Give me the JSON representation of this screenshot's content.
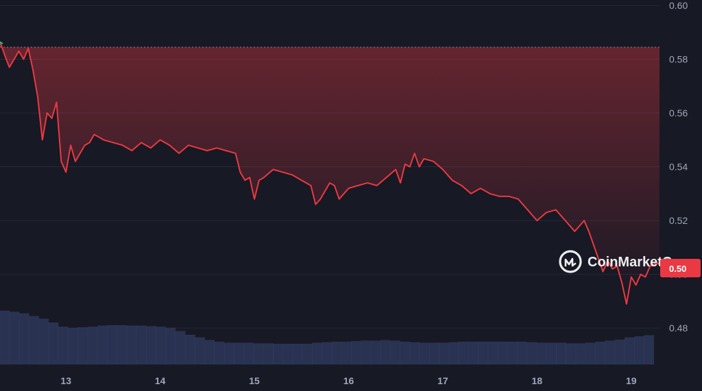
{
  "chart_data": {
    "type": "line",
    "title": "",
    "xlabel": "",
    "ylabel": "",
    "x_tick_labels": [
      "13",
      "14",
      "15",
      "16",
      "17",
      "18",
      "19"
    ],
    "y_tick_labels": [
      "0.60",
      "0.58",
      "0.56",
      "0.54",
      "0.52",
      "0.50",
      "0.48"
    ],
    "ylim": [
      0.465,
      0.6
    ],
    "xlim": [
      12.3,
      19.3
    ],
    "grid": true,
    "reference_price": 0.5845,
    "current_price_label": "0.50",
    "series": [
      {
        "x": [
          12.3,
          12.35,
          12.4,
          12.45,
          12.5,
          12.55,
          12.6,
          12.65,
          12.7,
          12.75,
          12.8,
          12.85,
          12.9,
          12.95,
          13.0,
          13.05,
          13.1,
          13.15,
          13.2,
          13.25,
          13.3,
          13.4,
          13.5,
          13.6,
          13.7,
          13.8,
          13.9,
          14.0,
          14.1,
          14.2,
          14.3,
          14.4,
          14.5,
          14.6,
          14.7,
          14.8,
          14.85,
          14.9,
          14.95,
          15.0,
          15.05,
          15.1,
          15.2,
          15.3,
          15.4,
          15.5,
          15.6,
          15.65,
          15.7,
          15.8,
          15.85,
          15.9,
          16.0,
          16.1,
          16.2,
          16.3,
          16.4,
          16.5,
          16.55,
          16.6,
          16.65,
          16.7,
          16.75,
          16.8,
          16.9,
          17.0,
          17.1,
          17.2,
          17.3,
          17.4,
          17.5,
          17.6,
          17.7,
          17.8,
          17.9,
          18.0,
          18.1,
          18.2,
          18.3,
          18.4,
          18.5,
          18.55,
          18.6,
          18.65,
          18.7,
          18.75,
          18.8,
          18.85,
          18.9,
          18.95,
          19.0,
          19.05,
          19.1,
          19.15,
          19.2,
          19.25,
          19.3
        ],
        "y": [
          0.5865,
          0.5815,
          0.577,
          0.58,
          0.583,
          0.58,
          0.584,
          0.576,
          0.566,
          0.55,
          0.56,
          0.558,
          0.564,
          0.542,
          0.538,
          0.548,
          0.542,
          0.545,
          0.548,
          0.549,
          0.552,
          0.55,
          0.549,
          0.548,
          0.546,
          0.549,
          0.547,
          0.55,
          0.548,
          0.545,
          0.548,
          0.547,
          0.546,
          0.547,
          0.546,
          0.545,
          0.538,
          0.535,
          0.536,
          0.528,
          0.535,
          0.536,
          0.539,
          0.538,
          0.537,
          0.535,
          0.533,
          0.526,
          0.528,
          0.534,
          0.533,
          0.528,
          0.532,
          0.533,
          0.534,
          0.533,
          0.536,
          0.539,
          0.534,
          0.541,
          0.54,
          0.545,
          0.54,
          0.543,
          0.542,
          0.539,
          0.535,
          0.533,
          0.53,
          0.532,
          0.53,
          0.529,
          0.529,
          0.528,
          0.524,
          0.52,
          0.523,
          0.524,
          0.52,
          0.516,
          0.52,
          0.516,
          0.511,
          0.506,
          0.501,
          0.505,
          0.502,
          0.503,
          0.497,
          0.489,
          0.499,
          0.496,
          0.5,
          0.499,
          0.503,
          0.504,
          0.504
        ]
      }
    ],
    "volume_relative": [
      1.0,
      0.98,
      0.95,
      0.9,
      0.85,
      0.78,
      0.7,
      0.68,
      0.69,
      0.7,
      0.72,
      0.73,
      0.73,
      0.72,
      0.72,
      0.71,
      0.7,
      0.68,
      0.62,
      0.55,
      0.5,
      0.45,
      0.42,
      0.4,
      0.4,
      0.4,
      0.39,
      0.39,
      0.38,
      0.38,
      0.38,
      0.38,
      0.4,
      0.41,
      0.42,
      0.42,
      0.43,
      0.44,
      0.44,
      0.45,
      0.44,
      0.42,
      0.41,
      0.4,
      0.4,
      0.4,
      0.41,
      0.42,
      0.42,
      0.42,
      0.42,
      0.42,
      0.42,
      0.42,
      0.41,
      0.4,
      0.4,
      0.4,
      0.39,
      0.39,
      0.4,
      0.42,
      0.44,
      0.46,
      0.5,
      0.52,
      0.54
    ],
    "colors": {
      "background": "#171924",
      "grid": "#262938",
      "line": "#ea3943",
      "start_segment": "#16c784",
      "volume": "#2a3252",
      "volume_stroke": "#3a4470",
      "axis_text": "#a1a7bb",
      "badge": "#ea3943"
    }
  },
  "watermark": {
    "brand": "CoinMarketCap",
    "icon": "coinmarketcap-logo-icon"
  }
}
